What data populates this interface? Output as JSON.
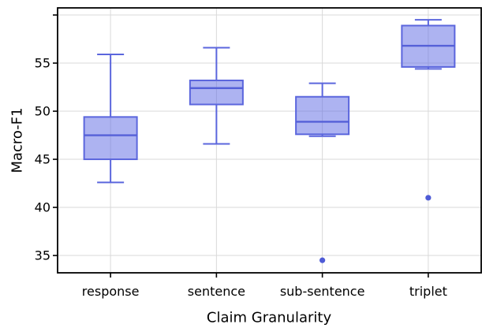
{
  "figure": {
    "ylabel": "Macro-F1",
    "xlabel": "Claim Granularity"
  },
  "chart_data": {
    "type": "boxplot",
    "title": "",
    "xlabel": "Claim Granularity",
    "ylabel": "Macro-F1",
    "categories": [
      "response",
      "sentence",
      "sub-sentence",
      "triplet"
    ],
    "boxes": [
      {
        "category": "response",
        "whisker_low": 42.6,
        "q1": 45.0,
        "median": 47.5,
        "q3": 49.4,
        "whisker_high": 55.9,
        "outliers": []
      },
      {
        "category": "sentence",
        "whisker_low": 46.6,
        "q1": 50.7,
        "median": 52.4,
        "q3": 53.2,
        "whisker_high": 56.6,
        "outliers": []
      },
      {
        "category": "sub-sentence",
        "whisker_low": 47.4,
        "q1": 47.6,
        "median": 48.9,
        "q3": 51.5,
        "whisker_high": 52.9,
        "outliers": [
          34.5
        ]
      },
      {
        "category": "triplet",
        "whisker_low": 54.4,
        "q1": 54.6,
        "median": 56.8,
        "q3": 58.9,
        "whisker_high": 59.5,
        "outliers": [
          41.0
        ]
      }
    ],
    "yticks": [
      35,
      40,
      45,
      50,
      55
    ],
    "unlabeled_gridlines": [
      60
    ],
    "ylim": [
      33.2,
      60.74
    ],
    "grid": true,
    "legend": null,
    "colors": {
      "box_fill": "rgba(91,104,227,0.5)",
      "box_edge": "#5b66dd",
      "median": "#5560d8",
      "whisker": "#5b66dd",
      "flier": "#4e5bd6",
      "grid": "#d9d9d9",
      "spine": "#000000",
      "text": "#000000"
    }
  }
}
